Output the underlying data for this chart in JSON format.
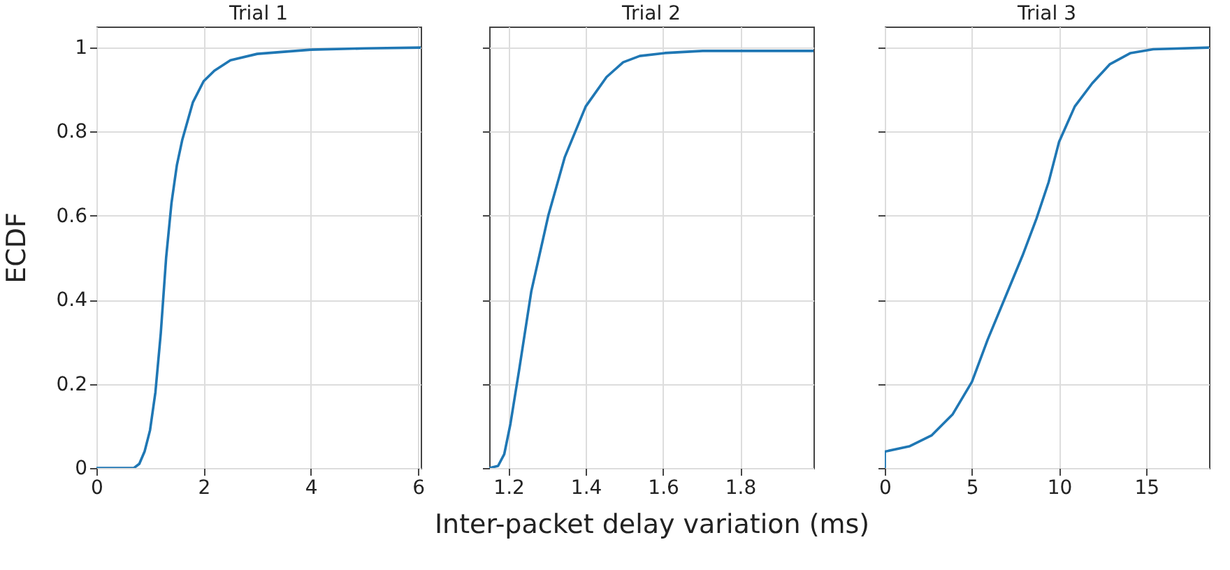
{
  "chart_data": [
    {
      "type": "line",
      "title": "Trial 1",
      "ylabel": "ECDF",
      "xlim": [
        0,
        6.05
      ],
      "ylim": [
        0,
        1.05
      ],
      "xticks": [
        0,
        2,
        4,
        6
      ],
      "yticks": [
        0,
        0.2,
        0.4,
        0.6,
        0.8,
        1
      ],
      "grid": true,
      "x": [
        0,
        0.7,
        0.8,
        0.9,
        1.0,
        1.1,
        1.2,
        1.3,
        1.4,
        1.5,
        1.6,
        1.8,
        2.0,
        2.2,
        2.5,
        3,
        4,
        5,
        6.05
      ],
      "series": [
        {
          "color": "#1f77b4",
          "values": [
            0,
            0,
            0.01,
            0.04,
            0.09,
            0.18,
            0.32,
            0.5,
            0.63,
            0.72,
            0.78,
            0.87,
            0.92,
            0.945,
            0.97,
            0.985,
            0.995,
            0.998,
            1
          ]
        }
      ]
    },
    {
      "type": "line",
      "title": "Trial 2",
      "xlabel": "Inter-packet delay variation (ms)",
      "xlim": [
        1.15,
        1.99
      ],
      "ylim": [
        0,
        1.05
      ],
      "xticks": [
        1.2,
        1.4,
        1.6,
        1.8
      ],
      "yticks": [
        0,
        0.2,
        0.4,
        0.6,
        0.8,
        1
      ],
      "grid": true,
      "tick_labels": "x",
      "x": [
        1.15,
        1.173,
        1.189,
        1.205,
        1.227,
        1.259,
        1.303,
        1.346,
        1.4,
        1.454,
        1.497,
        1.54,
        1.605,
        1.703,
        1.99
      ],
      "series": [
        {
          "color": "#1f77b4",
          "values": [
            0,
            0.005,
            0.033,
            0.105,
            0.23,
            0.42,
            0.6,
            0.74,
            0.86,
            0.93,
            0.965,
            0.98,
            0.987,
            0.992,
            0.992
          ]
        }
      ]
    },
    {
      "type": "line",
      "title": "Trial 3",
      "xlim": [
        0,
        18.6
      ],
      "ylim": [
        0,
        1.05
      ],
      "xticks": [
        0,
        5,
        10,
        15
      ],
      "yticks": [
        0,
        0.2,
        0.4,
        0.6,
        0.8,
        1
      ],
      "grid": true,
      "tick_labels": "x",
      "x": [
        0,
        0,
        1.44,
        2.7,
        3.9,
        5,
        5.9,
        6.9,
        7.9,
        8.7,
        9.4,
        10,
        10.9,
        11.9,
        12.9,
        14.1,
        15.4,
        18.6
      ],
      "series": [
        {
          "color": "#1f77b4",
          "values": [
            0,
            0.039,
            0.052,
            0.078,
            0.128,
            0.205,
            0.305,
            0.405,
            0.505,
            0.593,
            0.68,
            0.776,
            0.86,
            0.915,
            0.96,
            0.987,
            0.996,
            1.0
          ]
        }
      ]
    }
  ]
}
